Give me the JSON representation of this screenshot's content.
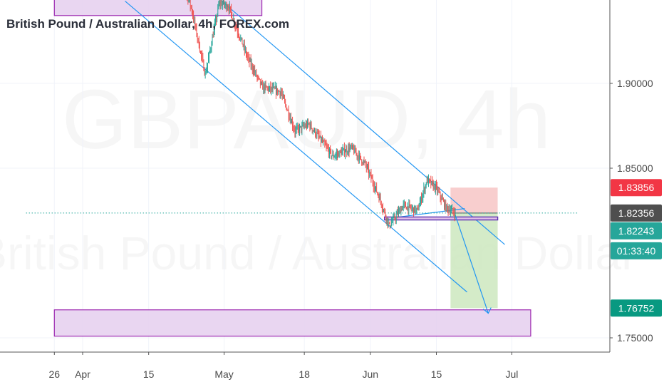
{
  "chart_data": {
    "type": "candlestick",
    "title": "British Pound / Australian Dollar, 4h, FOREX.com",
    "watermark": {
      "symbol": "GBPAUD, 4h",
      "name": "British Pound / Australian Dollar"
    },
    "y_axis": {
      "ticks": [
        {
          "value": 1.9,
          "label": "1.90000"
        },
        {
          "value": 1.85,
          "label": "1.85000"
        },
        {
          "value": 1.75,
          "label": "1.75000"
        }
      ]
    },
    "x_axis": {
      "ticks": [
        {
          "date": "2019-03-26",
          "label": "26"
        },
        {
          "date": "2019-04-01",
          "label": "Apr"
        },
        {
          "date": "2019-04-15",
          "label": "15"
        },
        {
          "date": "2019-05-01",
          "label": "May"
        },
        {
          "date": "2019-05-18",
          "label": "18"
        },
        {
          "date": "2019-06-01",
          "label": "Jun"
        },
        {
          "date": "2019-06-15",
          "label": "15"
        },
        {
          "date": "2019-07-01",
          "label": "Jul"
        }
      ]
    },
    "price_badges": [
      {
        "value": 1.83856,
        "label": "1.83856",
        "color": "#f23645",
        "role": "stop-loss"
      },
      {
        "value": 1.82356,
        "label": "1.82356",
        "color": "#4f4f4f",
        "role": "entry"
      },
      {
        "value": 1.82243,
        "label": "1.82243",
        "color": "#26a69a",
        "role": "last-price"
      },
      {
        "value": 1.76752,
        "label": "1.76752",
        "color": "#089981",
        "role": "take-profit"
      }
    ],
    "countdown": "01:33:40",
    "position": {
      "entry": 1.82356,
      "stop": 1.83856,
      "target": 1.76752,
      "direction": "short"
    },
    "zones": [
      {
        "name": "resistance-zone",
        "top": 1.975,
        "bottom": 1.94,
        "from": "2019-03-26",
        "to": "2019-05-09"
      },
      {
        "name": "support-zone",
        "top": 1.7665,
        "bottom": 1.751,
        "from": "2019-03-26",
        "to": "2019-07-05"
      }
    ],
    "colors": {
      "up": "#26a69a",
      "down": "#ef5350",
      "trendline": "#2196f3",
      "zone_fill": "#e5cfee",
      "zone_border": "#9c27b0",
      "axis_text": "#4a4a4a"
    }
  }
}
